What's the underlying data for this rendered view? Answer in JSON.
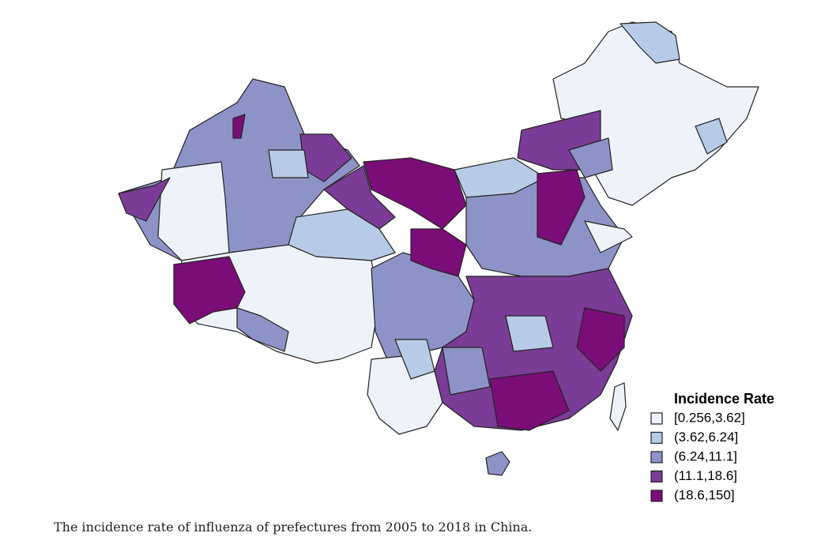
{
  "legend": {
    "title": "Incidence Rate",
    "items": [
      {
        "label": "[0.256,3.62]",
        "color": "#eef3fa"
      },
      {
        "label": "(3.62,6.24]",
        "color": "#b8cbe6"
      },
      {
        "label": "(6.24,11.1]",
        "color": "#8e93c7"
      },
      {
        "label": "(11.1,18.6]",
        "color": "#7a3c96"
      },
      {
        "label": "(18.6,150]",
        "color": "#7b0d78"
      }
    ]
  },
  "caption": "The incidence rate of influenza of prefectures from 2005 to 2018 in China."
}
